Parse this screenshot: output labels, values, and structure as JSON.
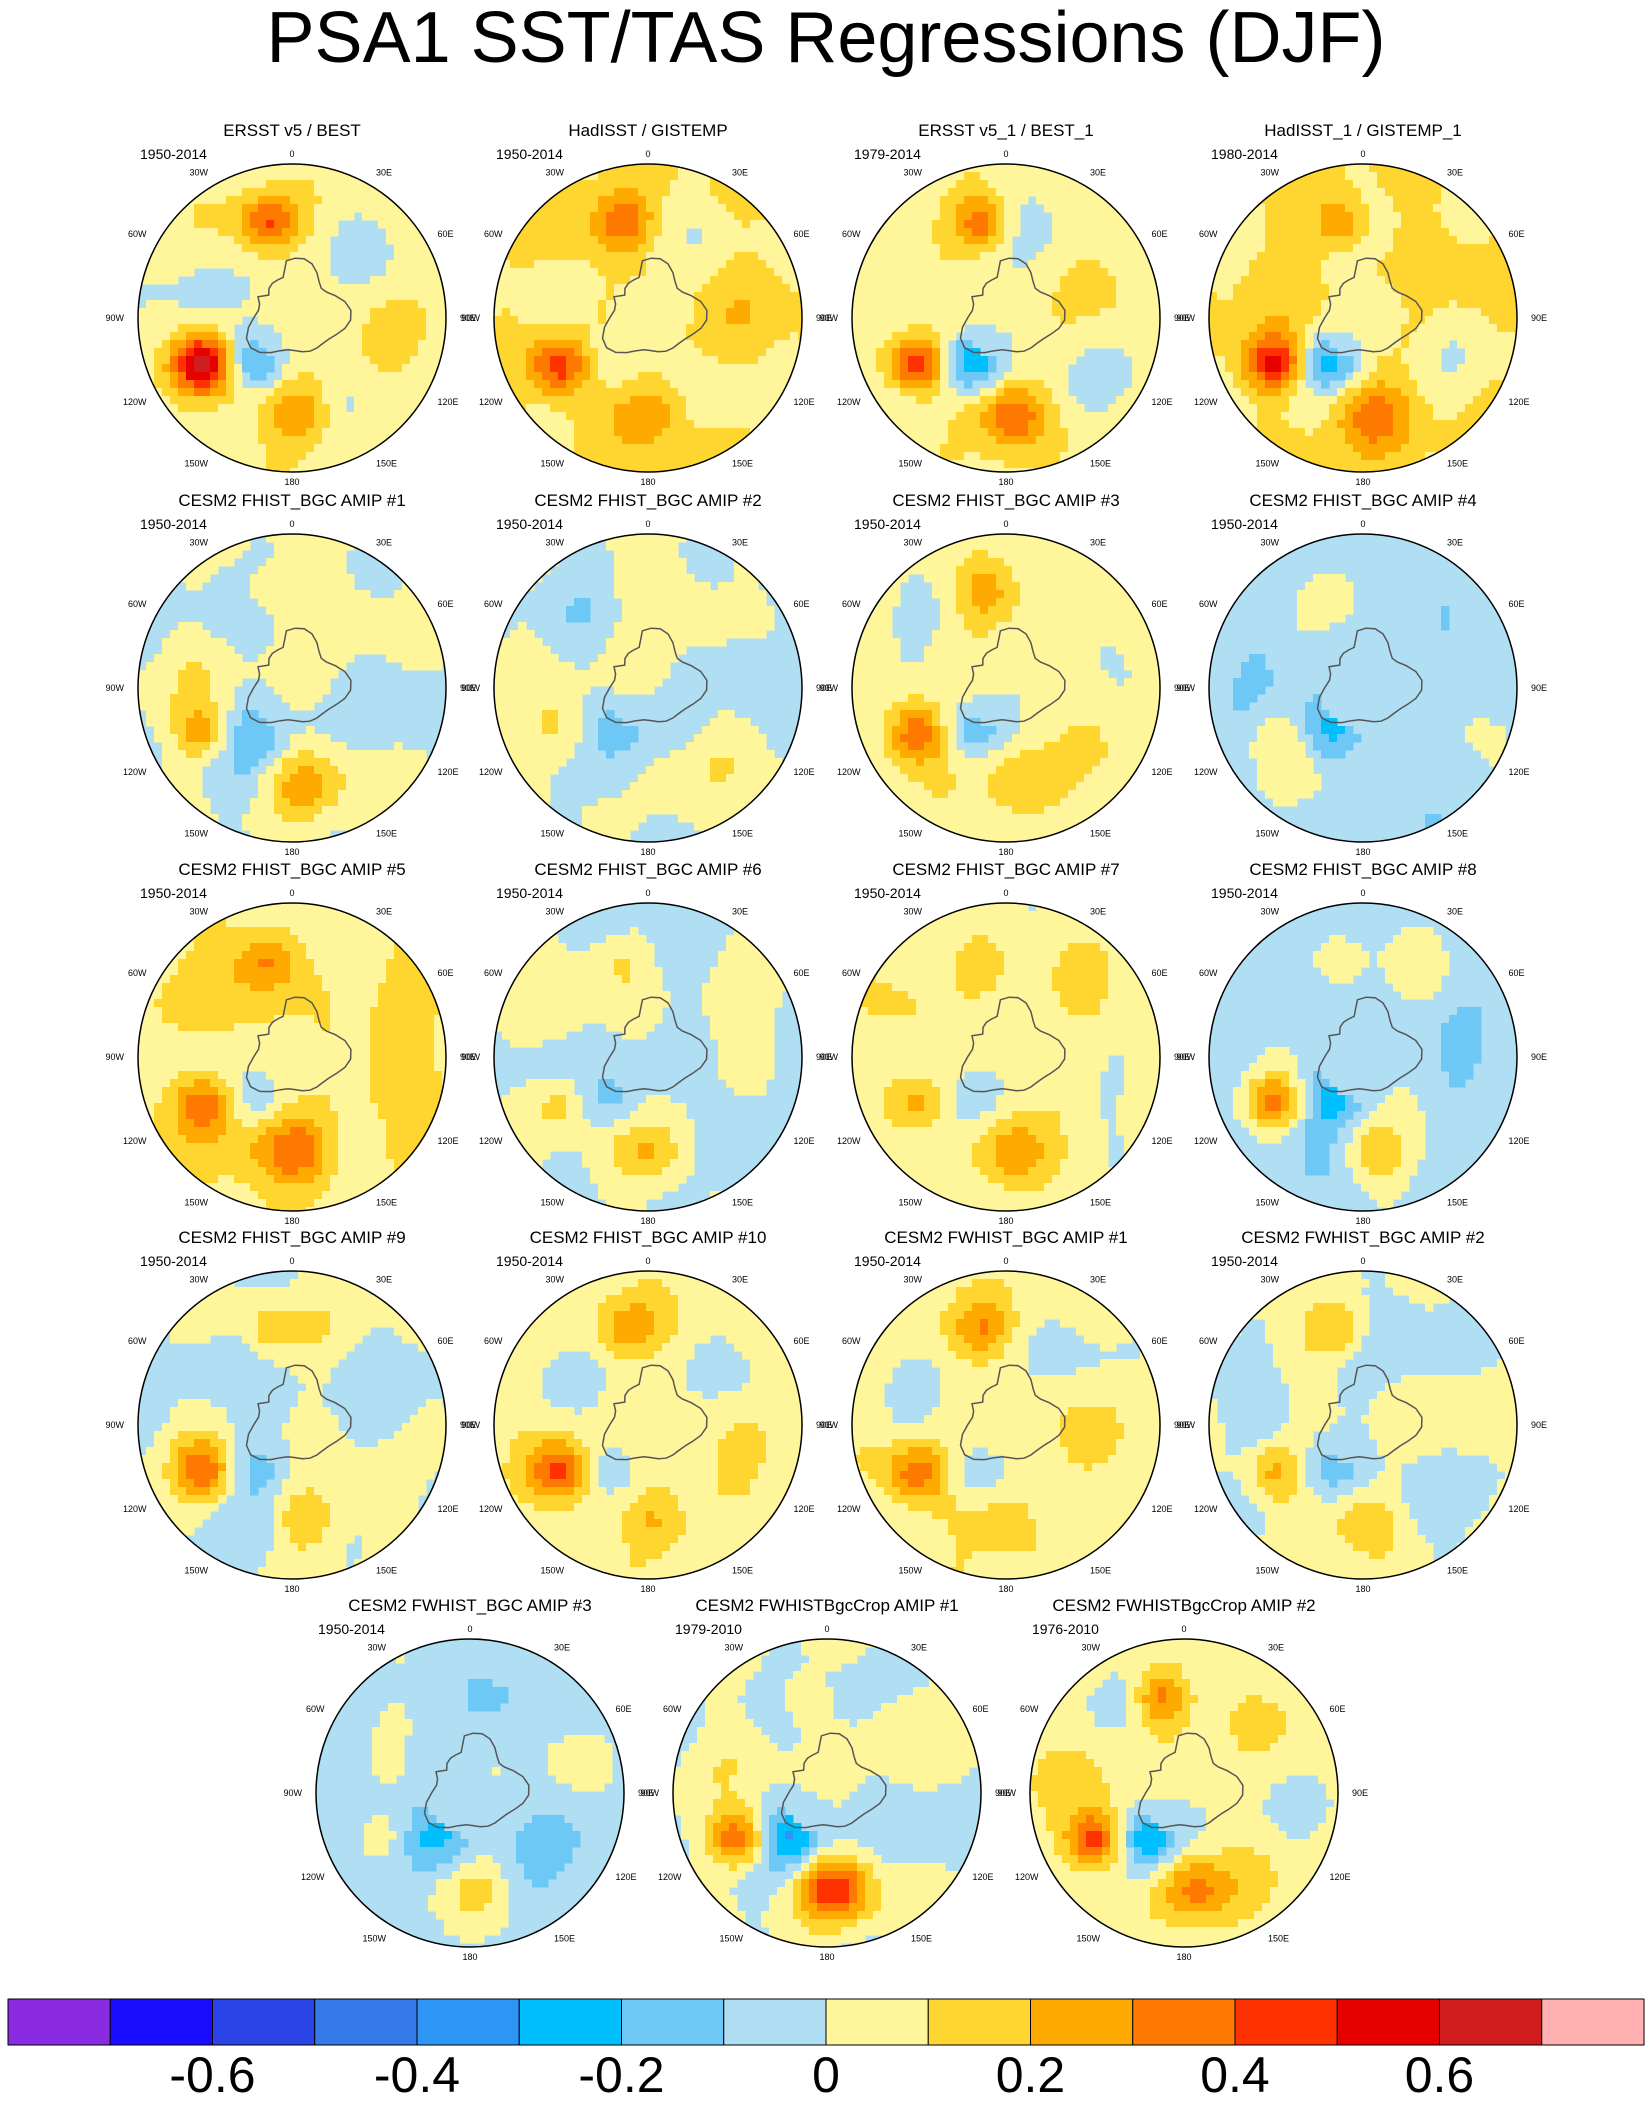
{
  "title": "PSA1 SST/TAS Regressions (DJF)",
  "chart_data": {
    "type": "polar_contour_map_panels",
    "projection": "south polar stereographic",
    "lon_labels": [
      "0",
      "30E",
      "60E",
      "90E",
      "120E",
      "150E",
      "180",
      "150W",
      "120W",
      "90W",
      "60W",
      "30W"
    ],
    "panels": [
      {
        "title": "ERSST v5 / BEST",
        "period": "1950-2014",
        "pattern": [
          0.55,
          -0.3,
          0.3,
          0.35,
          0.05
        ],
        "phase": 1
      },
      {
        "title": "HadISST / GISTEMP",
        "period": "1950-2014",
        "pattern": [
          0.4,
          -0.15,
          0.2,
          0.3,
          0.1
        ],
        "phase": 2
      },
      {
        "title": "ERSST v5_1 / BEST_1",
        "period": "1979-2014",
        "pattern": [
          0.5,
          -0.35,
          0.3,
          0.4,
          0.05
        ],
        "phase": 3
      },
      {
        "title": "HadISST_1 / GISTEMP_1",
        "period": "1980-2014",
        "pattern": [
          0.5,
          -0.3,
          0.2,
          0.35,
          0.1
        ],
        "phase": 4
      },
      {
        "title": "CESM2 FHIST_BGC AMIP #1",
        "period": "1950-2014",
        "pattern": [
          0.25,
          -0.15,
          0.2,
          0.2,
          0.0
        ],
        "phase": 5
      },
      {
        "title": "CESM2 FHIST_BGC AMIP #2",
        "period": "1950-2014",
        "pattern": [
          0.1,
          -0.15,
          0.05,
          0.05,
          0.0
        ],
        "phase": 6
      },
      {
        "title": "CESM2 FHIST_BGC AMIP #3",
        "period": "1950-2014",
        "pattern": [
          0.3,
          -0.2,
          0.2,
          0.2,
          0.05
        ],
        "phase": 7
      },
      {
        "title": "CESM2 FHIST_BGC AMIP #4",
        "period": "1950-2014",
        "pattern": [
          0.1,
          -0.15,
          0.05,
          0.05,
          -0.05
        ],
        "phase": 8
      },
      {
        "title": "CESM2 FHIST_BGC AMIP #5",
        "period": "1950-2014",
        "pattern": [
          0.3,
          -0.15,
          0.25,
          0.25,
          0.1
        ],
        "phase": 9
      },
      {
        "title": "CESM2 FHIST_BGC AMIP #6",
        "period": "1950-2014",
        "pattern": [
          0.2,
          -0.15,
          0.15,
          0.15,
          0.0
        ],
        "phase": 10
      },
      {
        "title": "CESM2 FHIST_BGC AMIP #7",
        "period": "1950-2014",
        "pattern": [
          0.25,
          -0.15,
          0.2,
          0.2,
          0.05
        ],
        "phase": 11
      },
      {
        "title": "CESM2 FHIST_BGC AMIP #8",
        "period": "1950-2014",
        "pattern": [
          0.35,
          -0.2,
          0.2,
          0.2,
          -0.05
        ],
        "phase": 12
      },
      {
        "title": "CESM2 FHIST_BGC AMIP #9",
        "period": "1950-2014",
        "pattern": [
          0.3,
          -0.15,
          0.2,
          0.2,
          0.0
        ],
        "phase": 13
      },
      {
        "title": "CESM2 FHIST_BGC AMIP #10",
        "period": "1950-2014",
        "pattern": [
          0.3,
          -0.15,
          0.25,
          0.2,
          0.05
        ],
        "phase": 14
      },
      {
        "title": "CESM2 FWHIST_BGC AMIP #1",
        "period": "1950-2014",
        "pattern": [
          0.3,
          -0.15,
          0.2,
          0.2,
          0.05
        ],
        "phase": 15
      },
      {
        "title": "CESM2 FWHIST_BGC AMIP #2",
        "period": "1950-2014",
        "pattern": [
          0.25,
          -0.15,
          0.2,
          0.2,
          0.0
        ],
        "phase": 16
      },
      {
        "title": "CESM2 FWHIST_BGC AMIP #3",
        "period": "1950-2014",
        "pattern": [
          0.15,
          -0.15,
          0.1,
          0.1,
          -0.05
        ],
        "phase": 17
      },
      {
        "title": "CESM2 FWHISTBgcCrop AMIP #1",
        "period": "1979-2010",
        "pattern": [
          0.45,
          -0.3,
          0.4,
          0.2,
          0.0
        ],
        "phase": 18
      },
      {
        "title": "CESM2 FWHISTBgcCrop AMIP #2",
        "period": "1976-2010",
        "pattern": [
          0.45,
          -0.35,
          0.25,
          0.4,
          0.05
        ],
        "phase": 19
      }
    ],
    "colorbar": {
      "levels": [
        -0.7,
        -0.6,
        -0.5,
        -0.4,
        -0.3,
        -0.2,
        -0.1,
        0,
        0.1,
        0.2,
        0.3,
        0.4,
        0.5,
        0.6,
        0.7
      ],
      "colors": [
        "#8a2be2",
        "#1a0dff",
        "#2a44e8",
        "#3579ea",
        "#2d96f5",
        "#00bfff",
        "#6dc8f5",
        "#b0def3",
        "#fff59b",
        "#ffd52f",
        "#ffaa00",
        "#ff7a00",
        "#ff3300",
        "#e60000",
        "#d01c1c",
        "#ffb1b1"
      ],
      "tick_labels": [
        "-0.6",
        "-0.4",
        "-0.2",
        "0",
        "0.2",
        "0.4",
        "0.6"
      ]
    }
  }
}
